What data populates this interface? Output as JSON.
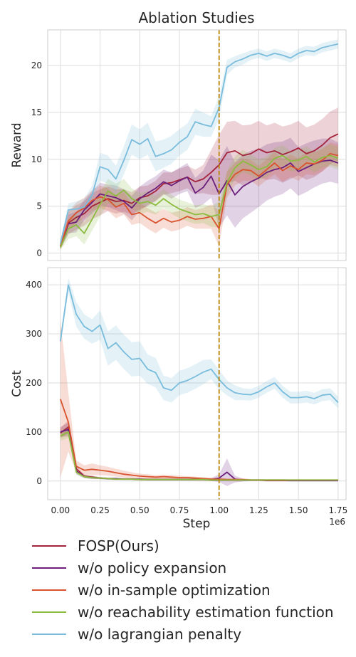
{
  "chart_data": {
    "type": "line",
    "title": "Ablation Studies",
    "xlabel": "Step",
    "x_offset_label": "1e6",
    "xlim": [
      -0.08,
      1.8
    ],
    "xticks": [
      0.0,
      0.25,
      0.5,
      0.75,
      1.0,
      1.25,
      1.5,
      1.75
    ],
    "xtick_labels": [
      "0.00",
      "0.25",
      "0.50",
      "0.75",
      "1.00",
      "1.25",
      "1.50",
      "1.75"
    ],
    "vline": {
      "x": 1.0,
      "color": "#b8860b",
      "style": "dashed"
    },
    "grid": true,
    "legend_position": "bottom",
    "series_meta": [
      {
        "name": "FOSP(Ours)",
        "color": "#a3233a"
      },
      {
        "name": "w/o policy expansion",
        "color": "#6b1f7b"
      },
      {
        "name": "w/o in-sample optimization",
        "color": "#d9532e"
      },
      {
        "name": "w/o reachability estimation function",
        "color": "#8bbb3f"
      },
      {
        "name": "w/o lagrangian penalty",
        "color": "#79bcdc"
      }
    ],
    "x": [
      0.0,
      0.05,
      0.1,
      0.15,
      0.2,
      0.25,
      0.3,
      0.35,
      0.4,
      0.45,
      0.5,
      0.55,
      0.6,
      0.65,
      0.7,
      0.75,
      0.8,
      0.85,
      0.9,
      0.95,
      1.0,
      1.05,
      1.1,
      1.15,
      1.2,
      1.25,
      1.3,
      1.35,
      1.4,
      1.45,
      1.5,
      1.55,
      1.6,
      1.65,
      1.7,
      1.75
    ],
    "panels": [
      {
        "ylabel": "Reward",
        "ylim": [
          -0.8,
          23.8
        ],
        "yticks": [
          0,
          5,
          10,
          15,
          20
        ],
        "series": [
          {
            "name": "FOSP(Ours)",
            "color": "#a3233a",
            "values": [
              0.7,
              3.2,
              3.8,
              4.2,
              5.0,
              5.4,
              5.8,
              5.5,
              5.6,
              5.3,
              5.9,
              6.1,
              6.6,
              7.4,
              7.5,
              7.8,
              8.1,
              7.6,
              7.9,
              8.6,
              9.4,
              10.7,
              10.9,
              10.4,
              10.6,
              11.1,
              10.7,
              10.9,
              10.5,
              10.8,
              11.2,
              10.6,
              10.9,
              11.5,
              12.3,
              12.7
            ],
            "band": [
              0.3,
              1.2,
              1.3,
              1.3,
              1.4,
              1.4,
              1.3,
              1.3,
              1.2,
              1.2,
              1.2,
              1.1,
              1.1,
              1.2,
              1.1,
              1.2,
              1.2,
              1.3,
              1.5,
              2.4,
              3.2,
              3.3,
              3.2,
              3.2,
              3.1,
              3.0,
              2.9,
              3.0,
              3.0,
              2.9,
              2.9,
              2.8,
              2.8,
              2.8,
              2.8,
              2.8
            ]
          },
          {
            "name": "w/o policy expansion",
            "color": "#6b1f7b",
            "values": [
              0.7,
              3.1,
              3.3,
              4.6,
              5.4,
              6.3,
              6.1,
              5.9,
              5.5,
              4.8,
              5.8,
              6.4,
              6.9,
              7.6,
              7.2,
              7.7,
              8.1,
              6.4,
              7.0,
              8.2,
              6.3,
              7.7,
              6.2,
              7.1,
              7.6,
              8.0,
              8.6,
              8.9,
              9.1,
              9.6,
              8.7,
              9.1,
              9.5,
              9.8,
              9.9,
              9.6
            ],
            "band": [
              0.3,
              1.0,
              1.1,
              1.1,
              1.2,
              1.2,
              1.2,
              1.3,
              1.3,
              1.3,
              1.3,
              1.3,
              1.3,
              1.3,
              1.4,
              1.4,
              1.5,
              1.6,
              1.8,
              2.3,
              3.6,
              3.7,
              3.5,
              3.4,
              3.3,
              3.1,
              3.0,
              2.9,
              2.8,
              2.7,
              2.6,
              2.6,
              2.5,
              2.4,
              2.3,
              2.2
            ]
          },
          {
            "name": "w/o in-sample optimization",
            "color": "#d9532e",
            "values": [
              0.7,
              3.4,
              4.3,
              4.8,
              5.6,
              6.0,
              5.7,
              4.9,
              5.3,
              4.1,
              4.3,
              3.7,
              3.2,
              3.7,
              3.3,
              3.5,
              3.9,
              3.6,
              3.7,
              3.9,
              2.6,
              7.3,
              8.4,
              8.9,
              8.8,
              8.2,
              8.9,
              9.6,
              8.8,
              9.3,
              8.9,
              9.6,
              9.5,
              9.9,
              10.6,
              10.4
            ],
            "band": [
              0.3,
              1.0,
              1.1,
              1.1,
              1.1,
              1.2,
              1.2,
              1.2,
              1.2,
              1.1,
              1.1,
              1.1,
              1.1,
              1.0,
              1.0,
              1.0,
              1.0,
              1.0,
              1.1,
              1.3,
              1.9,
              1.4,
              1.2,
              1.2,
              1.1,
              1.1,
              1.1,
              1.2,
              1.2,
              1.2,
              1.2,
              1.2,
              1.2,
              1.2,
              1.2,
              1.2
            ]
          },
          {
            "name": "w/o reachability estimation function",
            "color": "#8bbb3f",
            "values": [
              0.6,
              2.6,
              3.0,
              2.1,
              3.6,
              5.2,
              6.6,
              6.1,
              6.7,
              5.8,
              5.3,
              5.5,
              5.1,
              5.8,
              5.2,
              4.7,
              4.4,
              4.1,
              4.2,
              3.9,
              4.1,
              7.5,
              9.1,
              9.8,
              9.4,
              8.9,
              9.2,
              10.1,
              10.4,
              9.8,
              9.9,
              10.3,
              9.7,
              10.2,
              10.4,
              10.1
            ],
            "band": [
              0.3,
              1.1,
              1.2,
              1.2,
              1.2,
              1.3,
              1.3,
              1.3,
              1.2,
              1.1,
              1.1,
              1.1,
              1.0,
              1.0,
              1.0,
              1.0,
              1.0,
              1.0,
              1.0,
              1.1,
              1.4,
              1.3,
              1.2,
              1.2,
              1.1,
              1.1,
              1.1,
              1.1,
              1.1,
              1.1,
              1.1,
              1.1,
              1.1,
              1.1,
              1.2,
              1.2
            ]
          },
          {
            "name": "w/o lagrangian penalty",
            "color": "#79bcdc",
            "values": [
              1.0,
              4.6,
              4.7,
              4.9,
              6.2,
              9.2,
              8.9,
              7.9,
              9.9,
              12.1,
              11.6,
              12.2,
              10.3,
              10.6,
              11.0,
              11.8,
              12.4,
              14.0,
              13.7,
              13.5,
              15.5,
              19.8,
              20.4,
              20.7,
              21.1,
              21.3,
              21.0,
              21.3,
              21.1,
              20.8,
              21.3,
              21.6,
              21.5,
              21.9,
              22.1,
              22.3
            ],
            "band": [
              0.3,
              0.7,
              0.8,
              0.9,
              1.0,
              1.5,
              1.5,
              1.4,
              1.5,
              1.6,
              1.6,
              1.7,
              1.6,
              1.5,
              1.5,
              1.4,
              1.4,
              1.4,
              1.3,
              1.1,
              1.2,
              0.8,
              0.6,
              0.6,
              0.5,
              0.5,
              0.5,
              0.5,
              0.5,
              0.5,
              0.5,
              0.5,
              0.5,
              0.5,
              0.5,
              0.5
            ]
          }
        ]
      },
      {
        "ylabel": "Cost",
        "ylim": [
          -38,
          435
        ],
        "yticks": [
          0,
          100,
          200,
          300,
          400
        ],
        "series": [
          {
            "name": "FOSP(Ours)",
            "color": "#a3233a",
            "values": [
              98,
              110,
              25,
              10,
              8,
              6,
              5,
              4,
              4,
              4,
              3,
              3,
              3,
              3,
              3,
              3,
              3,
              3,
              3,
              2,
              2,
              2,
              2,
              2,
              2,
              2,
              1,
              1,
              1,
              1,
              1,
              1,
              1,
              1,
              1,
              1
            ],
            "band": [
              10,
              14,
              6,
              3,
              3,
              2,
              2,
              2,
              2,
              2,
              2,
              2,
              2,
              2,
              2,
              2,
              2,
              2,
              2,
              2,
              2,
              2,
              2,
              2,
              2,
              2,
              2,
              2,
              2,
              2,
              2,
              2,
              2,
              2,
              2,
              2
            ]
          },
          {
            "name": "w/o policy expansion",
            "color": "#6b1f7b",
            "values": [
              100,
              105,
              20,
              9,
              7,
              6,
              5,
              5,
              4,
              4,
              4,
              3,
              3,
              3,
              3,
              3,
              3,
              3,
              3,
              3,
              6,
              18,
              4,
              2,
              2,
              2,
              2,
              2,
              2,
              1,
              1,
              1,
              1,
              1,
              1,
              1
            ],
            "band": [
              10,
              14,
              6,
              3,
              3,
              2,
              2,
              2,
              2,
              2,
              2,
              2,
              2,
              2,
              2,
              2,
              2,
              2,
              2,
              3,
              8,
              28,
              7,
              3,
              2,
              2,
              2,
              2,
              2,
              2,
              2,
              2,
              2,
              2,
              2,
              2
            ]
          },
          {
            "name": "w/o in-sample optimization",
            "color": "#d9532e",
            "values": [
              167,
              120,
              30,
              22,
              24,
              22,
              20,
              17,
              14,
              12,
              10,
              9,
              8,
              9,
              8,
              7,
              7,
              6,
              5,
              4,
              4,
              3,
              3,
              3,
              2,
              2,
              2,
              2,
              2,
              2,
              2,
              2,
              2,
              2,
              2,
              2
            ],
            "band": [
              160,
              60,
              12,
              10,
              12,
              10,
              9,
              8,
              7,
              6,
              5,
              5,
              4,
              4,
              4,
              4,
              3,
              3,
              3,
              3,
              3,
              2,
              2,
              2,
              2,
              2,
              2,
              2,
              2,
              2,
              2,
              2,
              2,
              2,
              2,
              2
            ]
          },
          {
            "name": "w/o reachability estimation function",
            "color": "#8bbb3f",
            "values": [
              92,
              100,
              18,
              9,
              7,
              6,
              5,
              4,
              4,
              4,
              3,
              3,
              3,
              3,
              3,
              3,
              3,
              3,
              3,
              2,
              2,
              2,
              2,
              2,
              2,
              2,
              2,
              2,
              2,
              2,
              2,
              2,
              2,
              2,
              2,
              2
            ],
            "band": [
              10,
              12,
              5,
              3,
              3,
              2,
              2,
              2,
              2,
              2,
              2,
              2,
              2,
              2,
              2,
              2,
              2,
              2,
              2,
              2,
              2,
              2,
              2,
              2,
              2,
              2,
              2,
              2,
              2,
              2,
              2,
              2,
              2,
              2,
              2,
              2
            ]
          },
          {
            "name": "w/o lagrangian penalty",
            "color": "#79bcdc",
            "values": [
              285,
              400,
              340,
              315,
              305,
              318,
              270,
              282,
              263,
              248,
              250,
              228,
              221,
              190,
              185,
              200,
              205,
              213,
              222,
              228,
              207,
              190,
              180,
              177,
              176,
              182,
              192,
              200,
              182,
              170,
              170,
              172,
              168,
              175,
              177,
              160
            ],
            "band": [
              10,
              15,
              25,
              25,
              25,
              30,
              35,
              35,
              35,
              35,
              35,
              30,
              30,
              25,
              25,
              25,
              25,
              25,
              25,
              20,
              20,
              15,
              15,
              12,
              12,
              12,
              12,
              12,
              12,
              12,
              12,
              12,
              12,
              12,
              12,
              12
            ]
          }
        ]
      }
    ]
  }
}
